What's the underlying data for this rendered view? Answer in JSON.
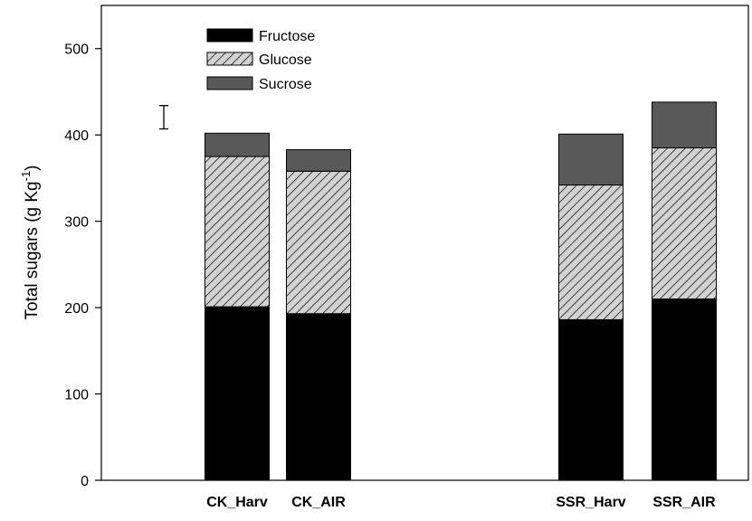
{
  "chart_data": {
    "type": "bar",
    "stacked": true,
    "title": "",
    "xlabel": "",
    "ylabel": {
      "main": "Total sugars (g Kg",
      "superscript": "-1",
      "close": ")"
    },
    "ylim": [
      0,
      550
    ],
    "yticks": [
      0,
      100,
      200,
      300,
      400,
      500
    ],
    "categories": [
      "CK_Harv",
      "CK_AIR",
      "SSR_Harv",
      "SSR_AIR"
    ],
    "series": [
      {
        "name": "Fructose",
        "values": [
          201,
          193,
          186,
          210
        ],
        "color": "#000000",
        "pattern": "solid"
      },
      {
        "name": "Glucose",
        "values": [
          174,
          165,
          156,
          175
        ],
        "color": "#c8c8c8",
        "pattern": "hatch"
      },
      {
        "name": "Sucrose",
        "values": [
          27,
          25,
          59,
          53
        ],
        "color": "#595959",
        "pattern": "solid"
      }
    ],
    "error_bar": {
      "low": 407,
      "high": 434
    },
    "legend_position": "top-left",
    "grid": false
  }
}
